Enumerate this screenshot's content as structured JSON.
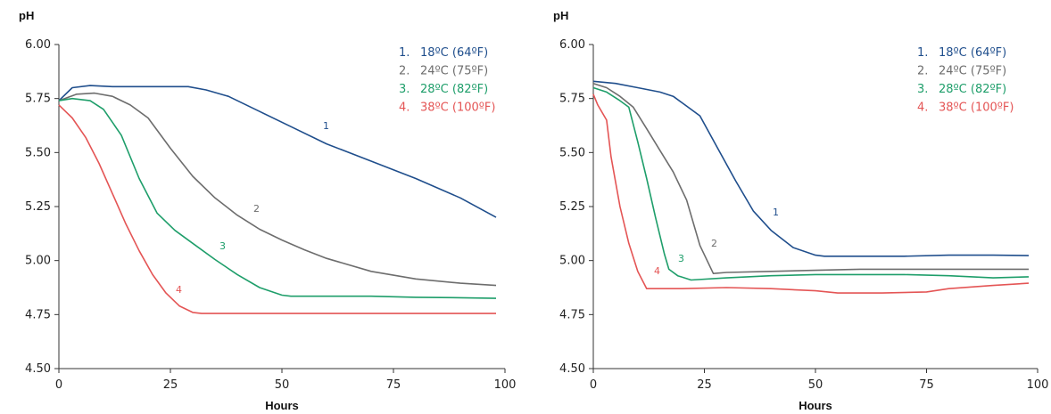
{
  "chart_data": [
    {
      "type": "line",
      "title": "",
      "xlabel": "Hours",
      "ylabel": "pH",
      "xlim": [
        0,
        100
      ],
      "ylim": [
        4.5,
        6.0
      ],
      "xticks": [
        "0",
        "25",
        "50",
        "75",
        "100"
      ],
      "yticks": [
        "4.50",
        "4.75",
        "5.00",
        "5.25",
        "5.50",
        "5.75",
        "6.00"
      ],
      "grid": false,
      "legend_position": "top-right",
      "series": [
        {
          "name": "18ºC (64ºF)",
          "number": "1.",
          "label": "1",
          "color": "#1f4e8c",
          "x": [
            0,
            3,
            7,
            12,
            20,
            29,
            33,
            38,
            45,
            52,
            60,
            70,
            80,
            90,
            98
          ],
          "y": [
            5.74,
            5.8,
            5.81,
            5.805,
            5.805,
            5.805,
            5.79,
            5.76,
            5.69,
            5.62,
            5.54,
            5.46,
            5.38,
            5.29,
            5.2
          ]
        },
        {
          "name": "24ºC (75ºF)",
          "number": "2.",
          "label": "2",
          "color": "#6d6d6d",
          "x": [
            0,
            4,
            8,
            12,
            16,
            20,
            25,
            30,
            35,
            40,
            45,
            50,
            55,
            60,
            70,
            80,
            90,
            98
          ],
          "y": [
            5.74,
            5.77,
            5.775,
            5.76,
            5.72,
            5.66,
            5.52,
            5.39,
            5.29,
            5.21,
            5.145,
            5.095,
            5.05,
            5.01,
            4.95,
            4.915,
            4.895,
            4.885
          ]
        },
        {
          "name": "28ºC (82ºF)",
          "number": "3.",
          "label": "3",
          "color": "#1e9e6a",
          "x": [
            0,
            3,
            7,
            10,
            14,
            18,
            22,
            26,
            30,
            35,
            40,
            45,
            50,
            52,
            60,
            70,
            80,
            90,
            98
          ],
          "y": [
            5.74,
            5.75,
            5.74,
            5.7,
            5.58,
            5.38,
            5.22,
            5.14,
            5.08,
            5.005,
            4.935,
            4.875,
            4.84,
            4.835,
            4.835,
            4.835,
            4.83,
            4.828,
            4.825
          ]
        },
        {
          "name": "38ºC (100ºF)",
          "number": "4.",
          "label": "4",
          "color": "#e45555",
          "x": [
            0,
            3,
            6,
            9,
            12,
            15,
            18,
            21,
            24,
            27,
            30,
            32,
            40,
            50,
            60,
            70,
            80,
            90,
            98
          ],
          "y": [
            5.72,
            5.66,
            5.57,
            5.45,
            5.31,
            5.17,
            5.045,
            4.935,
            4.85,
            4.79,
            4.76,
            4.755,
            4.755,
            4.755,
            4.755,
            4.755,
            4.755,
            4.755,
            4.755
          ]
        }
      ]
    },
    {
      "type": "line",
      "title": "",
      "xlabel": "Hours",
      "ylabel": "pH",
      "xlim": [
        0,
        100
      ],
      "ylim": [
        4.5,
        6.0
      ],
      "xticks": [
        "0",
        "25",
        "50",
        "75",
        "100"
      ],
      "yticks": [
        "4.50",
        "4.75",
        "5.00",
        "5.25",
        "5.50",
        "5.75",
        "6.00"
      ],
      "grid": false,
      "legend_position": "top-right",
      "series": [
        {
          "name": "18ºC (64ºF)",
          "number": "1.",
          "label": "1",
          "color": "#1f4e8c",
          "x": [
            0,
            5,
            10,
            15,
            18,
            20,
            24,
            28,
            32,
            36,
            40,
            45,
            50,
            52,
            60,
            70,
            80,
            90,
            98
          ],
          "y": [
            5.83,
            5.82,
            5.8,
            5.78,
            5.76,
            5.73,
            5.67,
            5.52,
            5.37,
            5.23,
            5.14,
            5.06,
            5.025,
            5.02,
            5.02,
            5.02,
            5.025,
            5.025,
            5.023
          ]
        },
        {
          "name": "24ºC (75ºF)",
          "number": "2.",
          "label": "2",
          "color": "#6d6d6d",
          "x": [
            0,
            3,
            6,
            9,
            12,
            15,
            18,
            21,
            24,
            27,
            30,
            40,
            50,
            60,
            70,
            80,
            90,
            98
          ],
          "y": [
            5.82,
            5.8,
            5.76,
            5.71,
            5.61,
            5.51,
            5.41,
            5.28,
            5.07,
            4.94,
            4.945,
            4.95,
            4.955,
            4.96,
            4.96,
            4.96,
            4.96,
            4.96
          ]
        },
        {
          "name": "28ºC (82ºF)",
          "number": "3.",
          "label": "3",
          "color": "#1e9e6a",
          "x": [
            0,
            3,
            6,
            8,
            10,
            12,
            14,
            16,
            17,
            19,
            22,
            30,
            40,
            50,
            60,
            70,
            80,
            90,
            98
          ],
          "y": [
            5.8,
            5.78,
            5.74,
            5.71,
            5.55,
            5.38,
            5.2,
            5.03,
            4.96,
            4.93,
            4.91,
            4.92,
            4.93,
            4.935,
            4.935,
            4.935,
            4.93,
            4.92,
            4.925
          ]
        },
        {
          "name": "38ºC (100ºF)",
          "number": "4.",
          "label": "4",
          "color": "#e45555",
          "x": [
            0,
            1,
            3,
            4,
            6,
            8,
            10,
            12,
            20,
            30,
            40,
            50,
            55,
            65,
            75,
            80,
            90,
            98
          ],
          "y": [
            5.77,
            5.72,
            5.65,
            5.48,
            5.25,
            5.08,
            4.95,
            4.87,
            4.87,
            4.875,
            4.87,
            4.86,
            4.85,
            4.85,
            4.855,
            4.87,
            4.885,
            4.895
          ]
        }
      ]
    }
  ]
}
